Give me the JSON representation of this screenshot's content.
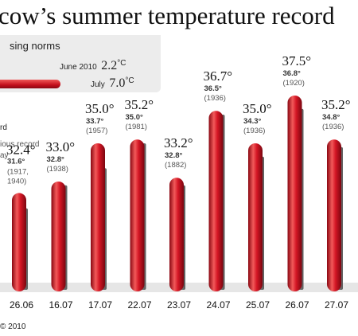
{
  "title": "cow’s summer temperature record",
  "legend": {
    "heading": "sing norms",
    "rows": [
      {
        "label": "June 2010",
        "value": "2.2",
        "unit": "°C"
      },
      {
        "label": "July",
        "value": "7.0",
        "unit": "°C"
      }
    ],
    "items": [
      "rd",
      "ious record",
      "ay"
    ]
  },
  "footer": "© 2010",
  "colors": {
    "record_bar": "#c4101c",
    "previous_bar": "#8f8f8f",
    "deg_gray": "#666666"
  },
  "chart_data": {
    "type": "bar",
    "categories": [
      "26.06",
      "16.07",
      "17.07",
      "22.07",
      "23.07",
      "24.07",
      "25.07",
      "26.07",
      "27.07"
    ],
    "series": [
      {
        "values": [
          32.4,
          33.0,
          35.0,
          35.2,
          33.2,
          36.7,
          35.0,
          37.5,
          35.2
        ]
      },
      {
        "values": [
          31.6,
          32.8,
          33.7,
          35.0,
          32.8,
          36.5,
          34.3,
          36.8,
          34.8
        ]
      }
    ],
    "value_labels": [
      "32.4°",
      "33.0°",
      "35.0°",
      "35.2°",
      "33.2°",
      "36.7°",
      "35.0°",
      "37.5°",
      "35.2°"
    ],
    "previous_labels": [
      "31.6°",
      "32.8°",
      "33.7°",
      "35.0°",
      "32.8°",
      "36.5°",
      "34.3°",
      "36.8°",
      "34.8°"
    ],
    "previous_years": [
      "(1917, 1940)",
      "(1938)",
      "(1957)",
      "(1981)",
      "(1882)",
      "(1936)",
      "(1936)",
      "(1920)",
      "(1936)"
    ],
    "ylim": [
      27.5,
      38.4
    ]
  }
}
